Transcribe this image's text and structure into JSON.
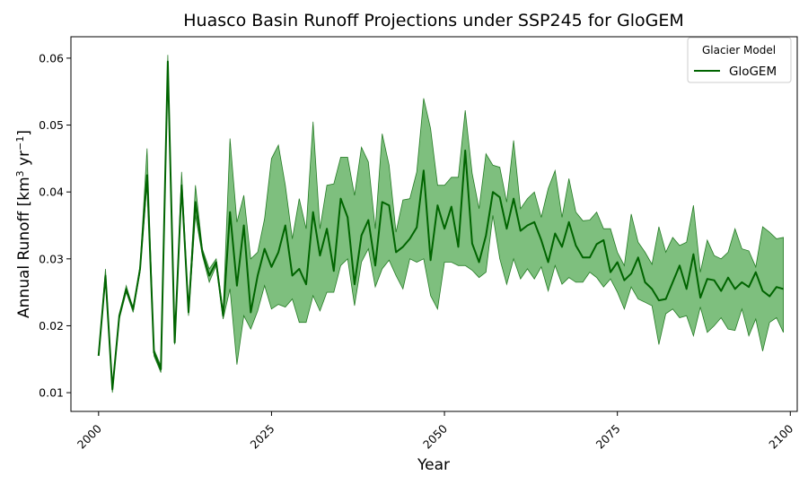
{
  "chart_data": {
    "type": "line",
    "title": "Huasco Basin Runoff Projections under SSP245 for GloGEM",
    "xlabel": "Year",
    "ylabel": "Annual Runoff [km",
    "ylabel_sup1": "3",
    "ylabel_mid": " yr",
    "ylabel_sup2": "−1",
    "ylabel_end": "]",
    "xlim": [
      1996,
      2101
    ],
    "ylim": [
      0.0072,
      0.0632
    ],
    "xticks": [
      2000,
      2025,
      2050,
      2075,
      2100
    ],
    "yticks": [
      0.01,
      0.02,
      0.03,
      0.04,
      0.05,
      0.06
    ],
    "ytick_labels": [
      "0.01",
      "0.02",
      "0.03",
      "0.04",
      "0.05",
      "0.06"
    ],
    "legend": {
      "title": "Glacier Model",
      "position": "top-right"
    },
    "series": [
      {
        "name": "GloGEM",
        "color": "#006400",
        "band_color": "#4ca64c",
        "x": [
          2000,
          2001,
          2002,
          2003,
          2004,
          2005,
          2006,
          2007,
          2008,
          2009,
          2010,
          2011,
          2012,
          2013,
          2014,
          2015,
          2016,
          2017,
          2018,
          2019,
          2020,
          2021,
          2022,
          2023,
          2024,
          2025,
          2026,
          2027,
          2028,
          2029,
          2030,
          2031,
          2032,
          2033,
          2034,
          2035,
          2036,
          2037,
          2038,
          2039,
          2040,
          2041,
          2042,
          2043,
          2044,
          2045,
          2046,
          2047,
          2048,
          2049,
          2050,
          2051,
          2052,
          2053,
          2054,
          2055,
          2056,
          2057,
          2058,
          2059,
          2060,
          2061,
          2062,
          2063,
          2064,
          2065,
          2066,
          2067,
          2068,
          2069,
          2070,
          2071,
          2072,
          2073,
          2074,
          2075,
          2076,
          2077,
          2078,
          2079,
          2080,
          2081,
          2082,
          2083,
          2084,
          2085,
          2086,
          2087,
          2088,
          2089,
          2090,
          2091,
          2092,
          2093,
          2094,
          2095,
          2096,
          2097,
          2098,
          2099
        ],
        "y": [
          0.0155,
          0.0275,
          0.0105,
          0.0215,
          0.0255,
          0.0225,
          0.0285,
          0.0425,
          0.016,
          0.0135,
          0.0595,
          0.0175,
          0.041,
          0.022,
          0.0385,
          0.031,
          0.0275,
          0.0295,
          0.0215,
          0.037,
          0.026,
          0.035,
          0.022,
          0.0275,
          0.0315,
          0.0288,
          0.031,
          0.035,
          0.0275,
          0.0285,
          0.0262,
          0.037,
          0.0305,
          0.0345,
          0.0282,
          0.039,
          0.0362,
          0.0262,
          0.0335,
          0.0358,
          0.029,
          0.0385,
          0.038,
          0.031,
          0.0318,
          0.033,
          0.0347,
          0.0432,
          0.0298,
          0.038,
          0.0345,
          0.0378,
          0.0318,
          0.0462,
          0.0323,
          0.0295,
          0.0335,
          0.04,
          0.0392,
          0.0345,
          0.039,
          0.0342,
          0.035,
          0.0355,
          0.0328,
          0.0295,
          0.0338,
          0.0318,
          0.0355,
          0.032,
          0.0302,
          0.0302,
          0.0322,
          0.0328,
          0.028,
          0.0295,
          0.0268,
          0.0278,
          0.0302,
          0.0265,
          0.0255,
          0.0238,
          0.024,
          0.0265,
          0.029,
          0.0255,
          0.0307,
          0.0242,
          0.027,
          0.0268,
          0.0252,
          0.0272,
          0.0255,
          0.0265,
          0.0258,
          0.028,
          0.0252,
          0.0244,
          0.0258,
          0.0255
        ],
        "y_min": [
          0.0155,
          0.027,
          0.01,
          0.021,
          0.025,
          0.022,
          0.028,
          0.0415,
          0.0155,
          0.013,
          0.059,
          0.0172,
          0.0405,
          0.0215,
          0.0365,
          0.0305,
          0.0265,
          0.029,
          0.021,
          0.0255,
          0.0142,
          0.0215,
          0.0195,
          0.0222,
          0.026,
          0.0225,
          0.0232,
          0.0228,
          0.024,
          0.0205,
          0.0205,
          0.0245,
          0.0222,
          0.025,
          0.025,
          0.029,
          0.03,
          0.023,
          0.0295,
          0.0315,
          0.0258,
          0.0285,
          0.0298,
          0.0275,
          0.0255,
          0.03,
          0.0295,
          0.03,
          0.0245,
          0.0225,
          0.0295,
          0.0295,
          0.029,
          0.029,
          0.0283,
          0.0272,
          0.028,
          0.0365,
          0.03,
          0.0262,
          0.03,
          0.027,
          0.0285,
          0.027,
          0.0288,
          0.0252,
          0.029,
          0.0262,
          0.0272,
          0.0265,
          0.0265,
          0.028,
          0.0272,
          0.0258,
          0.027,
          0.025,
          0.0225,
          0.0258,
          0.024,
          0.0235,
          0.023,
          0.0172,
          0.0218,
          0.0225,
          0.0212,
          0.0215,
          0.0185,
          0.0228,
          0.019,
          0.02,
          0.0212,
          0.0195,
          0.0193,
          0.0225,
          0.0185,
          0.021,
          0.0162,
          0.0205,
          0.0212,
          0.019
        ],
        "y_max": [
          0.0155,
          0.0285,
          0.0105,
          0.0215,
          0.026,
          0.0225,
          0.029,
          0.0465,
          0.0165,
          0.014,
          0.0605,
          0.0175,
          0.043,
          0.0225,
          0.041,
          0.0315,
          0.0285,
          0.03,
          0.022,
          0.048,
          0.0355,
          0.0395,
          0.03,
          0.031,
          0.036,
          0.045,
          0.047,
          0.041,
          0.033,
          0.039,
          0.0345,
          0.0505,
          0.0345,
          0.041,
          0.0412,
          0.0452,
          0.0452,
          0.0395,
          0.0467,
          0.0445,
          0.0345,
          0.0487,
          0.044,
          0.034,
          0.0388,
          0.039,
          0.043,
          0.054,
          0.0495,
          0.041,
          0.041,
          0.0422,
          0.0422,
          0.0522,
          0.0428,
          0.0375,
          0.0457,
          0.044,
          0.0437,
          0.0385,
          0.0477,
          0.0375,
          0.039,
          0.04,
          0.0362,
          0.0405,
          0.0432,
          0.0362,
          0.042,
          0.037,
          0.0357,
          0.0358,
          0.037,
          0.0345,
          0.0345,
          0.031,
          0.029,
          0.0367,
          0.0325,
          0.031,
          0.0292,
          0.0348,
          0.031,
          0.0332,
          0.032,
          0.0325,
          0.038,
          0.028,
          0.0328,
          0.0305,
          0.03,
          0.031,
          0.0345,
          0.0315,
          0.0312,
          0.0288,
          0.0348,
          0.034,
          0.033,
          0.0332
        ]
      }
    ]
  }
}
